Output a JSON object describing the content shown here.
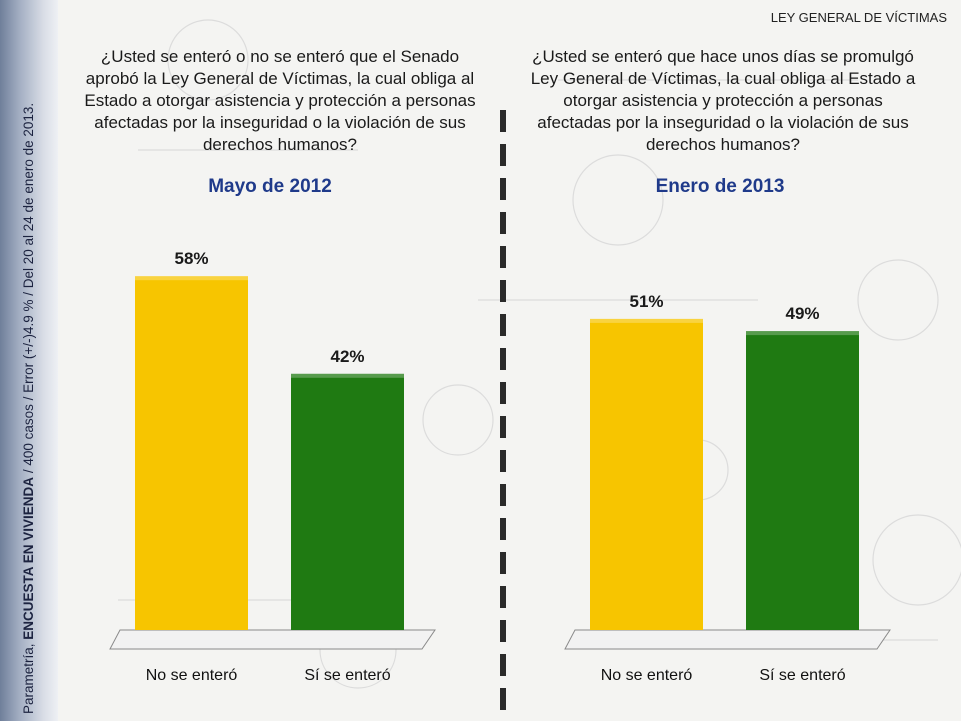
{
  "header": {
    "title": "LEY GENERAL DE VÍCTIMAS"
  },
  "sidebar": {
    "prefix": "Parametría, ",
    "bold": "ENCUESTA EN VIVIENDA",
    "suffix": " / 400 casos / Error (+/-)4.9 % / Del 20 al 24 de enero de 2013."
  },
  "left": {
    "question": "¿Usted se enteró o no se enteró que el Senado aprobó la Ley General de Víctimas, la cual obliga al Estado a otorgar asistencia y protección a personas afectadas por la inseguridad o la violación de sus derechos humanos?",
    "period": "Mayo de 2012"
  },
  "right": {
    "question": "¿Usted se enteró que hace unos días se promulgó Ley General de Víctimas, la cual obliga al Estado a otorgar asistencia y protección a personas afectadas por la inseguridad o la violación de sus derechos humanos?",
    "period": "Enero de 2013"
  },
  "colors": {
    "yellow": "#f7c500",
    "green": "#1f7a12",
    "title_blue": "#1f3a8a"
  },
  "chart_data": [
    {
      "type": "bar",
      "title": "Mayo de 2012",
      "categories": [
        "No se enteró",
        "Sí se enteró"
      ],
      "values": [
        58,
        42
      ],
      "labels": [
        "58%",
        "42%"
      ],
      "ylim": [
        0,
        100
      ],
      "grid": false
    },
    {
      "type": "bar",
      "title": "Enero de 2013",
      "categories": [
        "No se enteró",
        "Sí se enteró"
      ],
      "values": [
        51,
        49
      ],
      "labels": [
        "51%",
        "49%"
      ],
      "ylim": [
        0,
        100
      ],
      "grid": false
    }
  ]
}
